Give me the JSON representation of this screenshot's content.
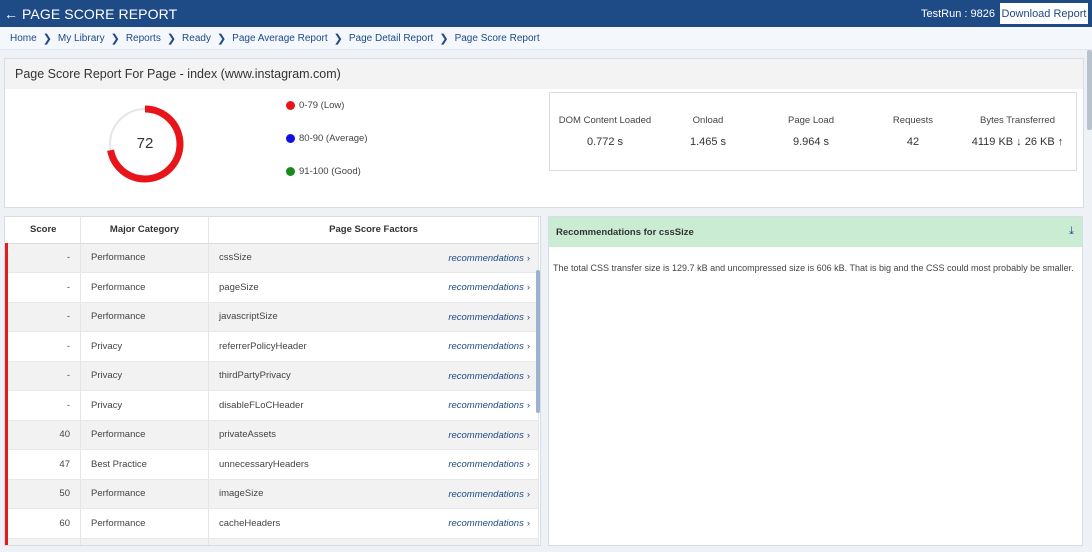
{
  "header": {
    "back_icon": "arrow-left-icon",
    "title": "PAGE SCORE REPORT",
    "testrun_label": "TestRun : 9826",
    "download_label": "Download Report"
  },
  "breadcrumb": [
    "Home",
    "My Library",
    "Reports",
    "Ready",
    "Page Average Report",
    "Page Detail Report",
    "Page Score Report"
  ],
  "summary": {
    "title": "Page Score Report For Page - index (www.instagram.com)",
    "score": "72",
    "score_value": 72,
    "gauge_color": "#e8141a",
    "legend": [
      {
        "label": "0-79 (Low)",
        "color": "#e8141a"
      },
      {
        "label": "80-90 (Average)",
        "color": "#1010e0"
      },
      {
        "label": "91-100 (Good)",
        "color": "#1a8a1a"
      }
    ]
  },
  "metrics": [
    {
      "label": "DOM Content Loaded",
      "value": "0.772 s"
    },
    {
      "label": "Onload",
      "value": "1.465 s"
    },
    {
      "label": "Page Load",
      "value": "9.964 s"
    },
    {
      "label": "Requests",
      "value": "42"
    },
    {
      "label": "Bytes Transferred",
      "value": "4119 KB ↓ 26 KB ↑"
    }
  ],
  "table": {
    "headers": [
      "Score",
      "Major Category",
      "Page Score Factors"
    ],
    "link_label": "recommendations",
    "rows": [
      {
        "score": "-",
        "category": "Performance",
        "factor": "cssSize"
      },
      {
        "score": "-",
        "category": "Performance",
        "factor": "pageSize"
      },
      {
        "score": "-",
        "category": "Performance",
        "factor": "javascriptSize"
      },
      {
        "score": "-",
        "category": "Privacy",
        "factor": "referrerPolicyHeader"
      },
      {
        "score": "-",
        "category": "Privacy",
        "factor": "thirdPartyPrivacy"
      },
      {
        "score": "-",
        "category": "Privacy",
        "factor": "disableFLoCHeader"
      },
      {
        "score": "40",
        "category": "Performance",
        "factor": "privateAssets"
      },
      {
        "score": "47",
        "category": "Best Practice",
        "factor": "unnecessaryHeaders"
      },
      {
        "score": "50",
        "category": "Performance",
        "factor": "imageSize"
      },
      {
        "score": "60",
        "category": "Performance",
        "factor": "cacheHeaders"
      },
      {
        "score": "",
        "category": "",
        "factor": ""
      }
    ]
  },
  "recommendations": {
    "title": "Recommendations for cssSize",
    "download_icon": "download-icon",
    "body": "The total CSS transfer size is 129.7 kB and uncompressed size is 606 kB. That is big and the CSS could most probably be smaller."
  }
}
